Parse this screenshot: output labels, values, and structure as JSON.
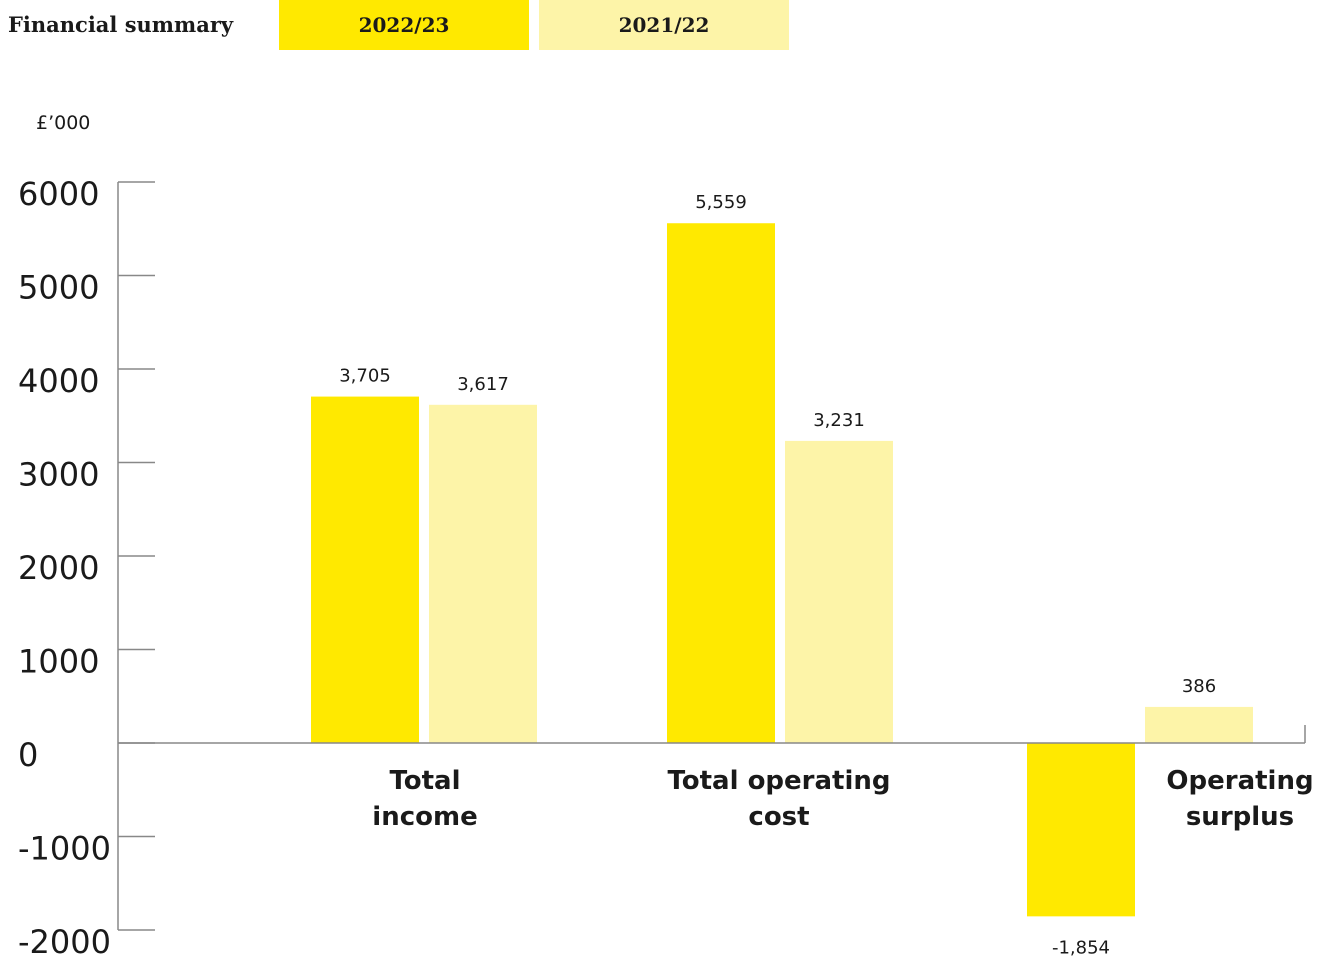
{
  "chart_data": {
    "type": "bar",
    "title": "Financial summary",
    "y_label": "£’000",
    "categories": [
      "Total income",
      "Total operating cost",
      "Operating surplus"
    ],
    "series": [
      {
        "name": "2022/23",
        "color": "#ffe900",
        "values": [
          3705,
          5559,
          -1854
        ],
        "value_labels": [
          "3,705",
          "5,559",
          "-1,854"
        ]
      },
      {
        "name": "2021/22",
        "color": "#fdf4a8",
        "values": [
          3617,
          3231,
          386
        ],
        "value_labels": [
          "3,617",
          "3,231",
          "386"
        ]
      }
    ],
    "ylim": [
      -2000,
      6000
    ],
    "yticks": [
      -2000,
      -1000,
      0,
      1000,
      2000,
      3000,
      4000,
      5000,
      6000
    ],
    "legend": "top"
  }
}
